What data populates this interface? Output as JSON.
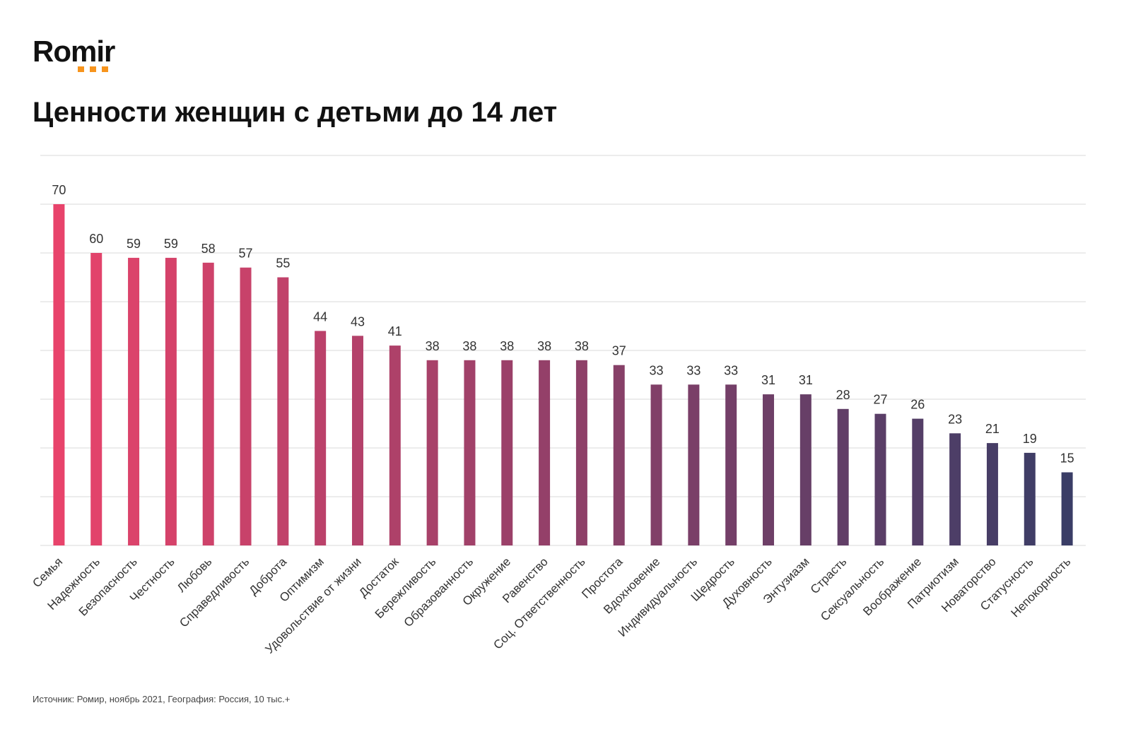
{
  "logo": "Romir",
  "chart_data": {
    "type": "bar",
    "title": "Ценности женщин с детьми до 14 лет",
    "categories": [
      "Семья",
      "Надежность",
      "Безопасность",
      "Честность",
      "Любовь",
      "Справедливость",
      "Доброта",
      "Оптимизм",
      "Удовольствие от жизни",
      "Достаток",
      "Бережливость",
      "Образованность",
      "Окружение",
      "Равенство",
      "Соц. Ответственность",
      "Простота",
      "Вдохновение",
      "Индивидуальность",
      "Щедрость",
      "Духовность",
      "Энтузиазм",
      "Страсть",
      "Сексуальность",
      "Воображение",
      "Патриотизм",
      "Новаторство",
      "Статусность",
      "Непокорность"
    ],
    "values": [
      70,
      60,
      59,
      59,
      58,
      57,
      55,
      44,
      43,
      41,
      38,
      38,
      38,
      38,
      38,
      37,
      33,
      33,
      33,
      31,
      31,
      28,
      27,
      26,
      23,
      21,
      19,
      15
    ],
    "gradient": [
      "#e8436b",
      "#3a3d66"
    ],
    "ylim": [
      0,
      80
    ],
    "yticks": [
      0,
      10,
      20,
      30,
      40,
      50,
      60,
      70,
      80
    ],
    "grid": true,
    "source": "Источник: Ромир, ноябрь 2021, География: Россия, 10 тыс.+"
  }
}
